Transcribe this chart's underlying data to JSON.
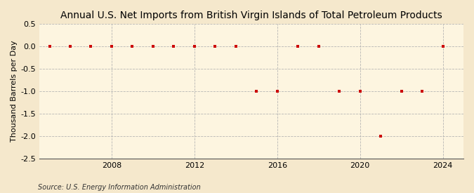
{
  "title": "Annual U.S. Net Imports from British Virgin Islands of Total Petroleum Products",
  "ylabel": "Thousand Barrels per Day",
  "source": "Source: U.S. Energy Information Administration",
  "background_color": "#f5e8cc",
  "plot_background_color": "#fdf5e0",
  "grid_color": "#b0b0b0",
  "marker_color": "#cc0000",
  "years": [
    2005,
    2006,
    2007,
    2008,
    2009,
    2010,
    2011,
    2012,
    2013,
    2014,
    2015,
    2016,
    2017,
    2018,
    2019,
    2020,
    2021,
    2022,
    2023,
    2024
  ],
  "values": [
    0,
    0,
    0,
    0,
    0,
    0,
    0,
    0,
    0,
    0,
    -1,
    -1,
    0,
    0,
    -1,
    -1,
    -2,
    -1,
    -1,
    0
  ],
  "xlim": [
    2004.5,
    2025.0
  ],
  "ylim": [
    -2.5,
    0.5
  ],
  "yticks": [
    0.5,
    0.0,
    -0.5,
    -1.0,
    -1.5,
    -2.0,
    -2.5
  ],
  "xticks": [
    2008,
    2012,
    2016,
    2020,
    2024
  ],
  "title_fontsize": 10,
  "label_fontsize": 8,
  "tick_fontsize": 8,
  "source_fontsize": 7
}
